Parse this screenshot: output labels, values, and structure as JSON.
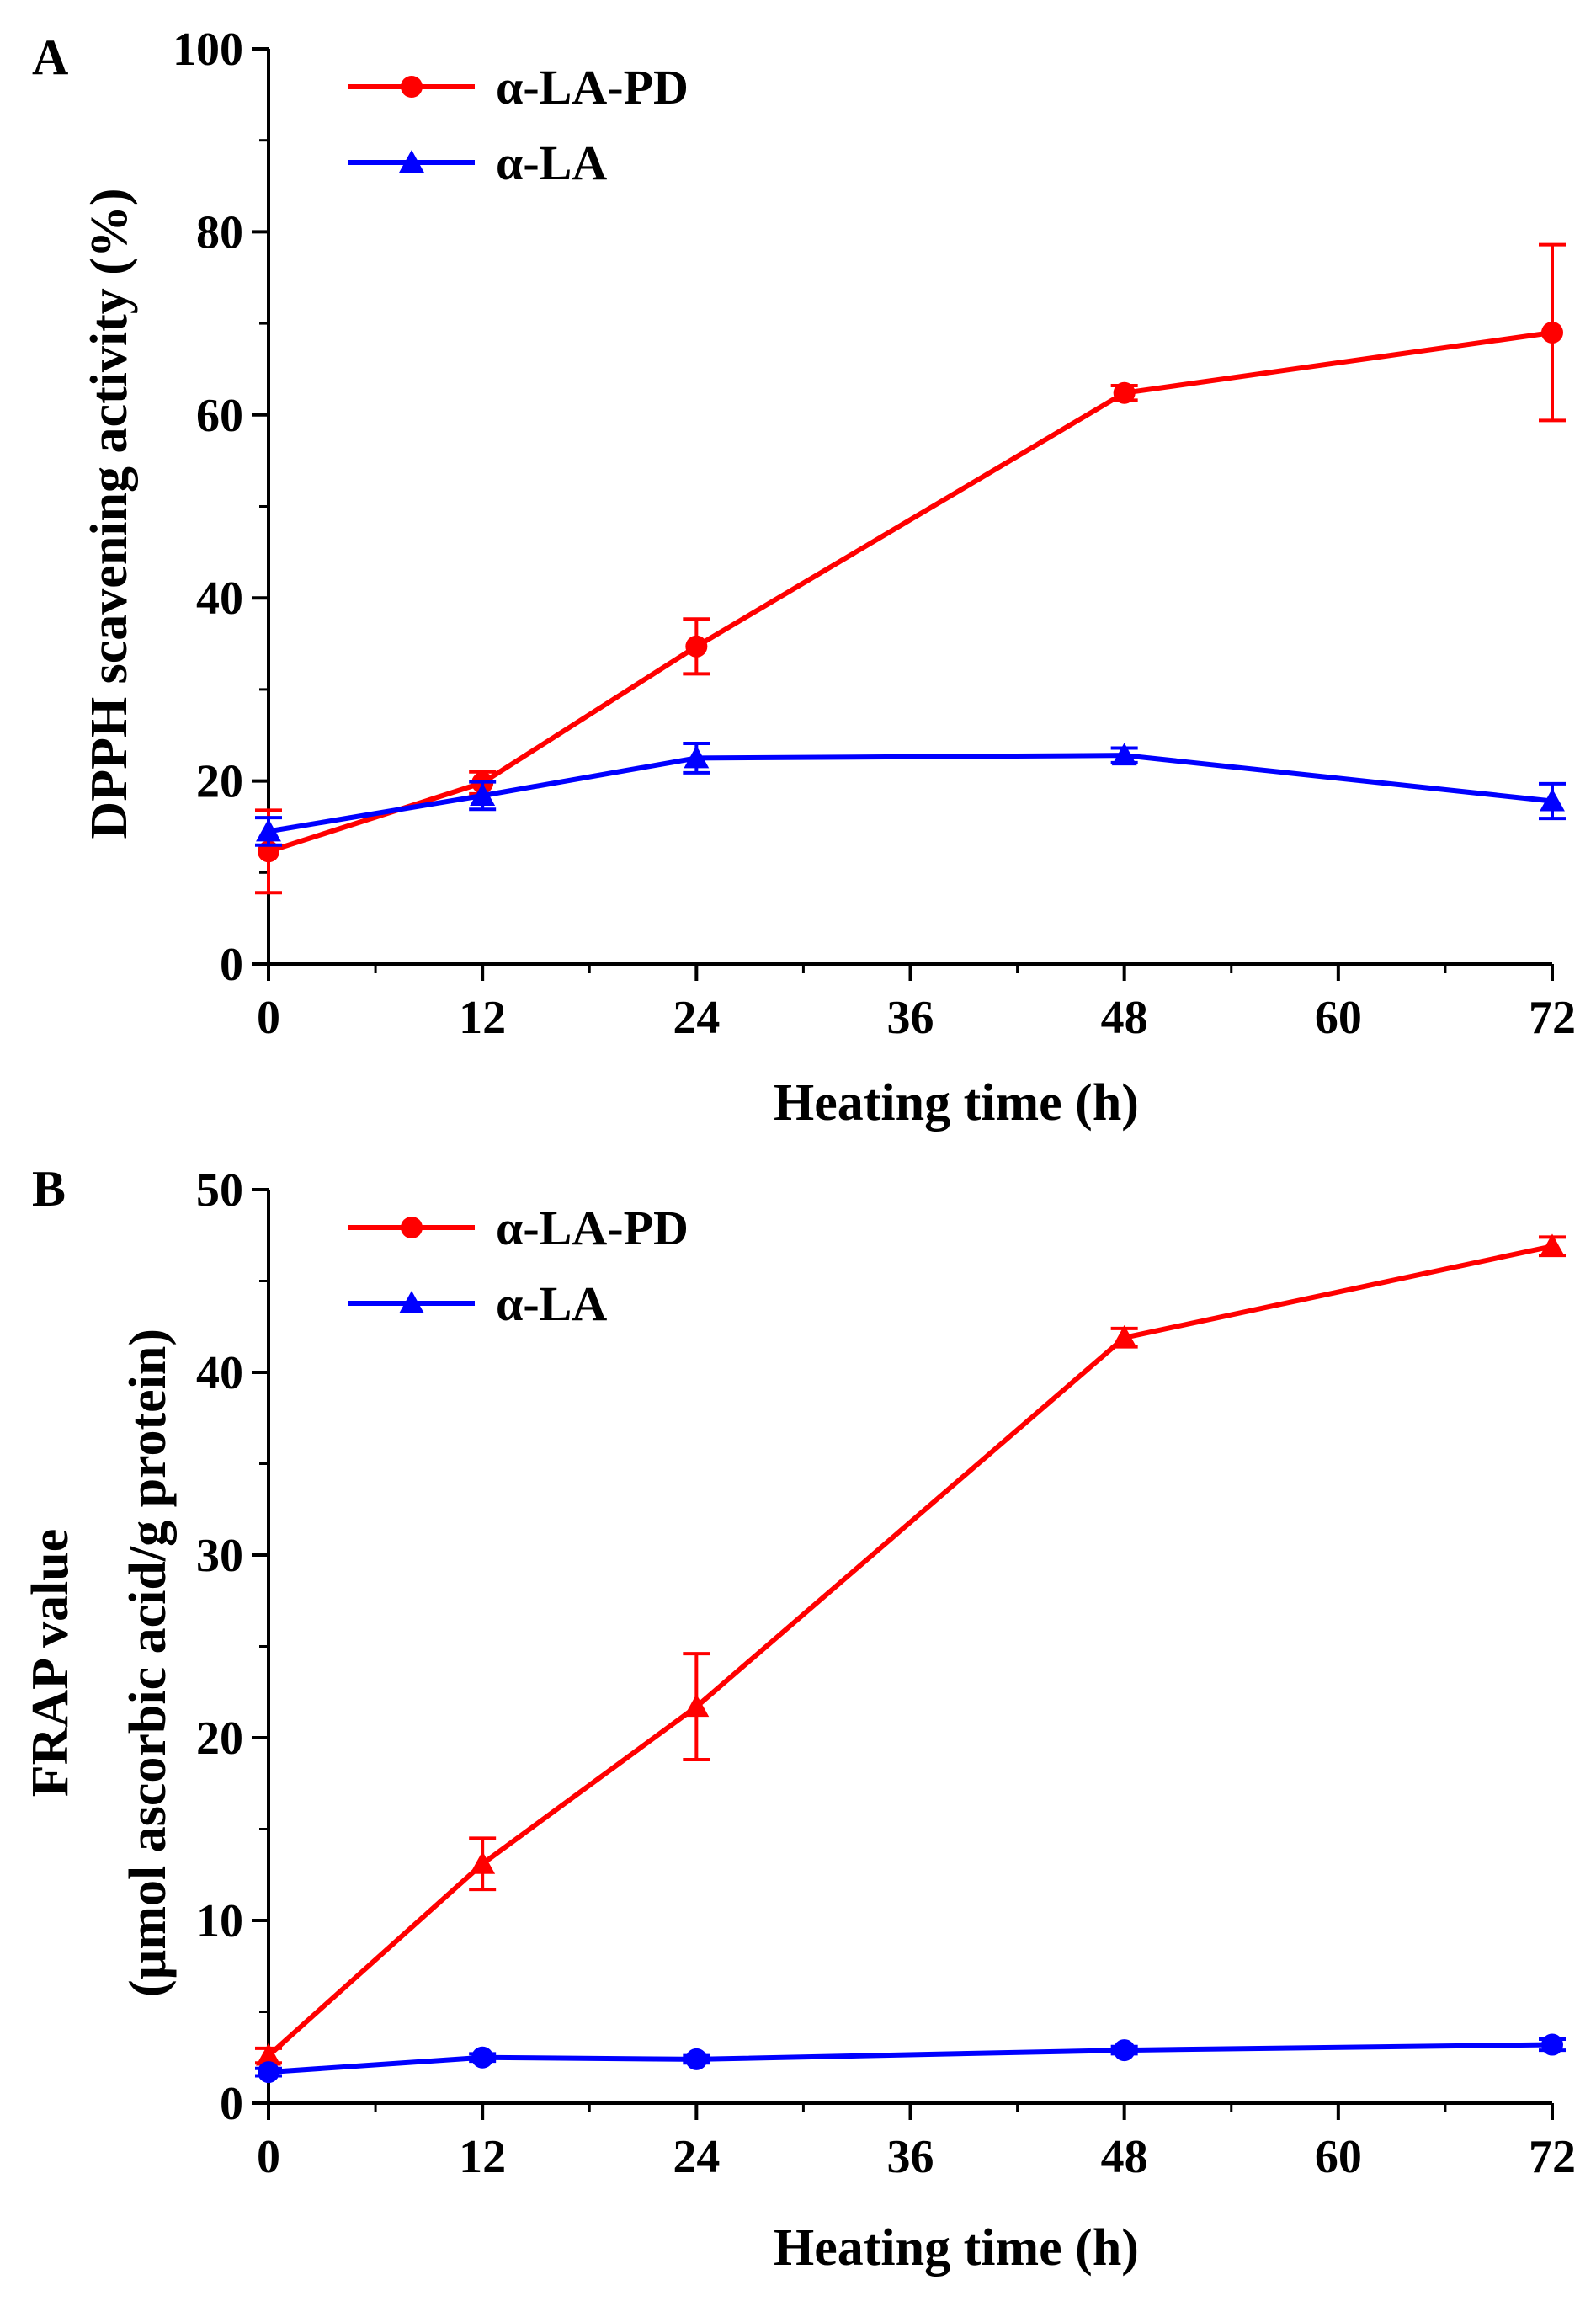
{
  "chart_data": [
    {
      "type": "line",
      "panel_label": "A",
      "xlabel": "Heating time (h)",
      "ylabel": "DPPH scavening activity (%)",
      "xlim": [
        0,
        72
      ],
      "ylim": [
        0,
        100
      ],
      "x_ticks": [
        0,
        12,
        24,
        36,
        48,
        60,
        72
      ],
      "y_ticks": [
        0,
        20,
        40,
        60,
        80,
        100
      ],
      "legend_position": "top-left",
      "grid": false,
      "series": [
        {
          "name": "α-LA-PD",
          "color": "#ff0000",
          "marker": "circle",
          "x": [
            0,
            12,
            24,
            48,
            72
          ],
          "y": [
            12.3,
            19.8,
            34.7,
            62.4,
            69.0
          ],
          "error": [
            4.5,
            1.2,
            3.0,
            0.8,
            9.6
          ]
        },
        {
          "name": "α-LA",
          "color": "#0000ff",
          "marker": "triangle",
          "x": [
            0,
            12,
            24,
            48,
            72
          ],
          "y": [
            14.5,
            18.4,
            22.5,
            22.8,
            17.8
          ],
          "error": [
            1.5,
            1.5,
            1.6,
            0.8,
            1.9
          ]
        }
      ]
    },
    {
      "type": "line",
      "panel_label": "B",
      "xlabel": "Heating time (h)",
      "ylabel": "FRAP value",
      "ylabel_line2": "(µmol ascorbic acid/g protein)",
      "xlim": [
        0,
        72
      ],
      "ylim": [
        0,
        50
      ],
      "x_ticks": [
        0,
        12,
        24,
        36,
        48,
        60,
        72
      ],
      "y_ticks": [
        0,
        10,
        20,
        30,
        40,
        50
      ],
      "legend_position": "top-left",
      "grid": false,
      "series": [
        {
          "name": "α-LA-PD",
          "color": "#ff0000",
          "marker": "triangle",
          "legend_marker": "circle",
          "x": [
            0,
            12,
            24,
            48,
            72
          ],
          "y": [
            2.6,
            13.1,
            21.7,
            41.9,
            46.9
          ],
          "error": [
            0.4,
            1.4,
            2.9,
            0.5,
            0.5
          ]
        },
        {
          "name": "α-LA",
          "color": "#0000ff",
          "marker": "circle",
          "legend_marker": "triangle",
          "x": [
            0,
            12,
            24,
            48,
            72
          ],
          "y": [
            1.7,
            2.5,
            2.4,
            2.9,
            3.2
          ],
          "error": [
            0.2,
            0.2,
            0.2,
            0.2,
            0.3
          ]
        }
      ]
    }
  ]
}
